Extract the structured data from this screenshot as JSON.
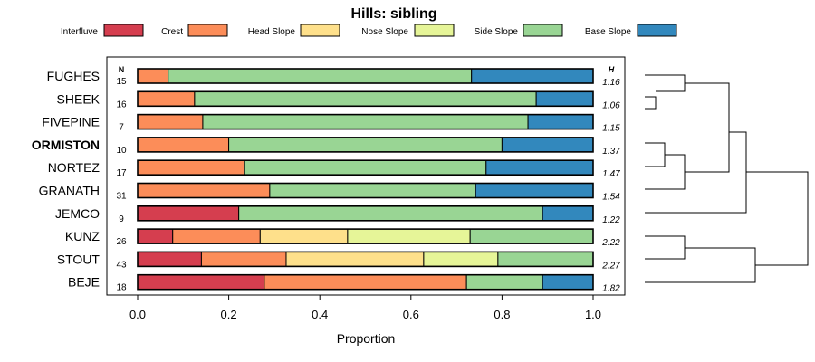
{
  "chart_data": {
    "type": "bar",
    "orientation": "horizontal-stacked",
    "title": "Hills: sibling",
    "xlabel": "Proportion",
    "ylabel": "",
    "xlim": [
      0,
      1
    ],
    "xticks": [
      "0.0",
      "0.2",
      "0.4",
      "0.6",
      "0.8",
      "1.0"
    ],
    "n_header": "N",
    "h_header": "H",
    "legend_position": "top",
    "series": [
      {
        "name": "Interfluve",
        "color": "#d53e4f"
      },
      {
        "name": "Crest",
        "color": "#fc8d59"
      },
      {
        "name": "Head Slope",
        "color": "#fee08b"
      },
      {
        "name": "Nose Slope",
        "color": "#e6f598"
      },
      {
        "name": "Side Slope",
        "color": "#99d594"
      },
      {
        "name": "Base Slope",
        "color": "#3288bd"
      }
    ],
    "rows": [
      {
        "name": "FUGHES",
        "n": "15",
        "h": "1.16",
        "bold": false,
        "values": [
          0,
          0.067,
          0,
          0,
          0.666,
          0.267
        ]
      },
      {
        "name": "SHEEK",
        "n": "16",
        "h": "1.06",
        "bold": false,
        "values": [
          0,
          0.125,
          0,
          0,
          0.75,
          0.125
        ]
      },
      {
        "name": "FIVEPINE",
        "n": "7",
        "h": "1.15",
        "bold": false,
        "values": [
          0,
          0.143,
          0,
          0,
          0.714,
          0.143
        ]
      },
      {
        "name": "ORMISTON",
        "n": "10",
        "h": "1.37",
        "bold": true,
        "values": [
          0,
          0.2,
          0,
          0,
          0.6,
          0.2
        ]
      },
      {
        "name": "NORTEZ",
        "n": "17",
        "h": "1.47",
        "bold": false,
        "values": [
          0,
          0.235,
          0,
          0,
          0.53,
          0.235
        ]
      },
      {
        "name": "GRANATH",
        "n": "31",
        "h": "1.54",
        "bold": false,
        "values": [
          0,
          0.29,
          0,
          0,
          0.452,
          0.258
        ]
      },
      {
        "name": "JEMCO",
        "n": "9",
        "h": "1.22",
        "bold": false,
        "values": [
          0.222,
          0,
          0,
          0,
          0.667,
          0.111
        ]
      },
      {
        "name": "KUNZ",
        "n": "26",
        "h": "2.22",
        "bold": false,
        "values": [
          0.077,
          0.192,
          0.192,
          0.269,
          0.27,
          0
        ]
      },
      {
        "name": "STOUT",
        "n": "43",
        "h": "2.27",
        "bold": false,
        "values": [
          0.14,
          0.186,
          0.302,
          0.163,
          0.209,
          0
        ]
      },
      {
        "name": "BEJE",
        "n": "18",
        "h": "1.82",
        "bold": false,
        "values": [
          0.278,
          0.444,
          0,
          0,
          0.167,
          0.111
        ]
      }
    ]
  }
}
